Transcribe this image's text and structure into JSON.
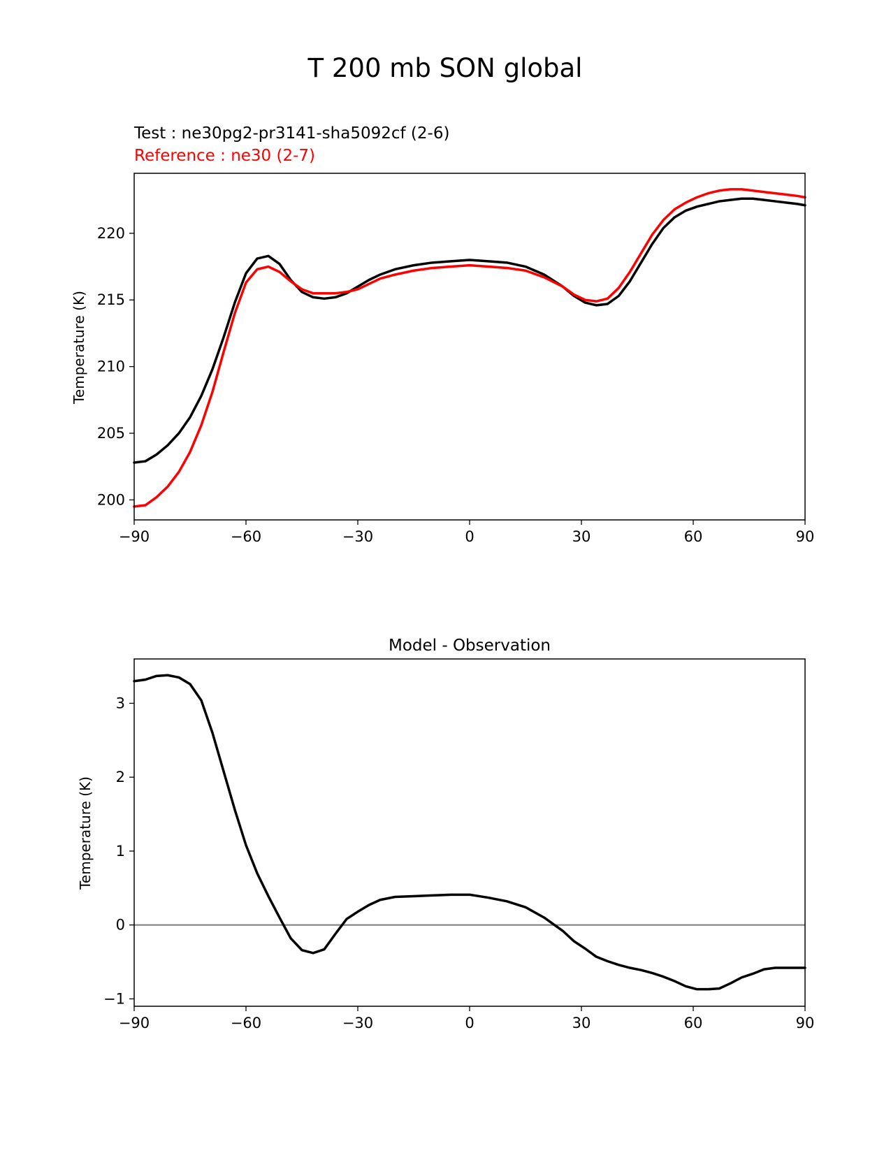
{
  "figure": {
    "suptitle": "T 200 mb SON global",
    "test_label": "Test : ne30pg2-pr3141-sha5092cf (2-6)",
    "reference_label": "Reference : ne30 (2-7)"
  },
  "colors": {
    "test": "#000000",
    "reference": "#ff0000",
    "zero_line": "#808080"
  },
  "chart_data": [
    {
      "type": "line",
      "title": "",
      "xlabel": "",
      "ylabel": "Temperature (K)",
      "xlim": [
        -90,
        90
      ],
      "ylim": [
        198.5,
        224.5
      ],
      "xticks": [
        -90,
        -60,
        -30,
        0,
        30,
        60,
        90
      ],
      "yticks": [
        200,
        205,
        210,
        215,
        220
      ],
      "xtick_labels": [
        "−90",
        "−60",
        "−30",
        "0",
        "30",
        "60",
        "90"
      ],
      "ytick_labels": [
        "200",
        "205",
        "210",
        "215",
        "220"
      ],
      "series": [
        {
          "name": "Test : ne30pg2-pr3141-sha5092cf (2-6)",
          "color": "#000000",
          "x": [
            -90,
            -87,
            -84,
            -81,
            -78,
            -75,
            -72,
            -69,
            -66,
            -63,
            -60,
            -57,
            -54,
            -51,
            -48,
            -45,
            -42,
            -39,
            -36,
            -33,
            -30,
            -27,
            -24,
            -20,
            -15,
            -10,
            -5,
            0,
            5,
            10,
            15,
            20,
            25,
            28,
            31,
            34,
            37,
            40,
            43,
            46,
            49,
            52,
            55,
            58,
            61,
            64,
            67,
            70,
            73,
            76,
            79,
            82,
            85,
            88,
            90
          ],
          "values": [
            202.8,
            202.9,
            203.4,
            204.1,
            205.0,
            206.2,
            207.8,
            209.8,
            212.2,
            214.8,
            217.0,
            218.1,
            218.3,
            217.7,
            216.5,
            215.6,
            215.2,
            215.1,
            215.2,
            215.5,
            216.0,
            216.5,
            216.9,
            217.3,
            217.6,
            217.8,
            217.9,
            218.0,
            217.9,
            217.8,
            217.5,
            216.9,
            216.0,
            215.3,
            214.8,
            214.6,
            214.7,
            215.3,
            216.4,
            217.8,
            219.2,
            220.4,
            221.2,
            221.7,
            222.0,
            222.2,
            222.4,
            222.5,
            222.6,
            222.6,
            222.5,
            222.4,
            222.3,
            222.2,
            222.1
          ]
        },
        {
          "name": "Reference : ne30 (2-7)",
          "color": "#ff0000",
          "x": [
            -90,
            -87,
            -84,
            -81,
            -78,
            -75,
            -72,
            -69,
            -66,
            -63,
            -60,
            -57,
            -54,
            -51,
            -48,
            -45,
            -42,
            -39,
            -36,
            -33,
            -30,
            -27,
            -24,
            -20,
            -15,
            -10,
            -5,
            0,
            5,
            10,
            15,
            20,
            25,
            28,
            31,
            34,
            37,
            40,
            43,
            46,
            49,
            52,
            55,
            58,
            61,
            64,
            67,
            70,
            73,
            76,
            79,
            82,
            85,
            88,
            90
          ],
          "values": [
            199.5,
            199.6,
            200.2,
            201.0,
            202.1,
            203.6,
            205.6,
            208.1,
            211.1,
            214.0,
            216.3,
            217.3,
            217.5,
            217.1,
            216.4,
            215.8,
            215.5,
            215.5,
            215.5,
            215.6,
            215.8,
            216.2,
            216.6,
            216.9,
            217.2,
            217.4,
            217.5,
            217.6,
            217.5,
            217.4,
            217.2,
            216.7,
            216.0,
            215.4,
            215.0,
            214.9,
            215.1,
            215.9,
            217.1,
            218.5,
            219.9,
            221.0,
            221.8,
            222.3,
            222.7,
            223.0,
            223.2,
            223.3,
            223.3,
            223.2,
            223.1,
            223.0,
            222.9,
            222.8,
            222.7
          ]
        }
      ]
    },
    {
      "type": "line",
      "title": "Model - Observation",
      "xlabel": "",
      "ylabel": "Temperature (K)",
      "xlim": [
        -90,
        90
      ],
      "ylim": [
        -1.1,
        3.6
      ],
      "xticks": [
        -90,
        -60,
        -30,
        0,
        30,
        60,
        90
      ],
      "yticks": [
        -1,
        0,
        1,
        2,
        3
      ],
      "xtick_labels": [
        "−90",
        "−60",
        "−30",
        "0",
        "30",
        "60",
        "90"
      ],
      "ytick_labels": [
        "−1",
        "0",
        "1",
        "2",
        "3"
      ],
      "zero_line": 0,
      "series": [
        {
          "name": "Model - Observation",
          "color": "#000000",
          "x": [
            -90,
            -87,
            -84,
            -81,
            -78,
            -75,
            -72,
            -69,
            -66,
            -63,
            -60,
            -57,
            -54,
            -51,
            -48,
            -45,
            -42,
            -39,
            -36,
            -33,
            -30,
            -27,
            -24,
            -20,
            -15,
            -10,
            -5,
            0,
            5,
            10,
            15,
            20,
            25,
            28,
            31,
            34,
            37,
            40,
            43,
            46,
            49,
            52,
            55,
            58,
            61,
            64,
            67,
            70,
            73,
            76,
            79,
            82,
            85,
            88,
            90
          ],
          "values": [
            3.3,
            3.32,
            3.37,
            3.38,
            3.35,
            3.26,
            3.04,
            2.6,
            2.08,
            1.56,
            1.08,
            0.7,
            0.39,
            0.1,
            -0.18,
            -0.34,
            -0.38,
            -0.33,
            -0.12,
            0.08,
            0.18,
            0.27,
            0.34,
            0.38,
            0.39,
            0.4,
            0.41,
            0.41,
            0.37,
            0.32,
            0.24,
            0.1,
            -0.08,
            -0.22,
            -0.32,
            -0.43,
            -0.49,
            -0.54,
            -0.58,
            -0.61,
            -0.65,
            -0.7,
            -0.76,
            -0.83,
            -0.87,
            -0.87,
            -0.86,
            -0.79,
            -0.71,
            -0.66,
            -0.6,
            -0.58,
            -0.58,
            -0.58,
            -0.58
          ]
        }
      ]
    }
  ]
}
